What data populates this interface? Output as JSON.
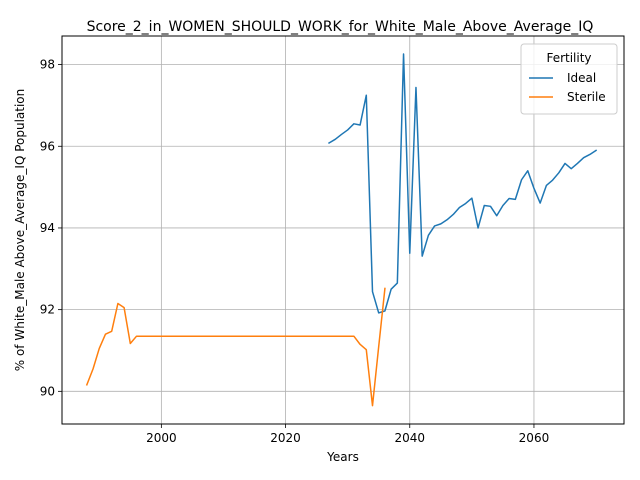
{
  "chart_data": {
    "type": "line",
    "title": "Score_2_in_WOMEN_SHOULD_WORK_for_White_Male_Above_Average_IQ",
    "xlabel": "Years",
    "ylabel": "% of White_Male Above_Average_IQ Population",
    "xlim": [
      1984,
      2074.5
    ],
    "ylim": [
      89.2,
      98.7
    ],
    "xticks": [
      2000,
      2020,
      2040,
      2060
    ],
    "yticks": [
      90,
      92,
      94,
      96,
      98
    ],
    "grid": true,
    "legend": {
      "title": "Fertility",
      "placement": "top-right"
    },
    "series": [
      {
        "name": "Ideal",
        "color": "#1f77b4",
        "x": [
          2027,
          2028,
          2029,
          2030,
          2031,
          2032,
          2033,
          2034,
          2035,
          2036,
          2037,
          2038,
          2039,
          2040,
          2041,
          2042,
          2043,
          2044,
          2045,
          2046,
          2047,
          2048,
          2049,
          2050,
          2051,
          2052,
          2053,
          2054,
          2055,
          2056,
          2057,
          2058,
          2059,
          2060,
          2061,
          2062,
          2063,
          2064,
          2065,
          2066,
          2067,
          2068,
          2069,
          2070
        ],
        "values": [
          96.08,
          96.17,
          96.29,
          96.4,
          96.55,
          96.52,
          97.25,
          92.44,
          91.92,
          91.97,
          92.5,
          92.65,
          98.26,
          93.38,
          97.44,
          93.31,
          93.82,
          94.05,
          94.1,
          94.2,
          94.33,
          94.5,
          94.6,
          94.73,
          94.0,
          94.55,
          94.53,
          94.3,
          94.55,
          94.72,
          94.7,
          95.18,
          95.4,
          94.97,
          94.61,
          95.04,
          95.17,
          95.35,
          95.58,
          95.45,
          95.58,
          95.72,
          95.8,
          95.9
        ]
      },
      {
        "name": "Sterile",
        "color": "#ff7f0e",
        "x": [
          1988,
          1989,
          1990,
          1991,
          1992,
          1993,
          1994,
          1995,
          1996,
          1997,
          1998,
          1999,
          2000,
          2005,
          2010,
          2015,
          2020,
          2025,
          2029,
          2030,
          2031,
          2032,
          2033,
          2034,
          2035,
          2036
        ],
        "values": [
          90.16,
          90.55,
          91.05,
          91.4,
          91.47,
          92.15,
          92.05,
          91.17,
          91.35,
          91.35,
          91.35,
          91.35,
          91.35,
          91.35,
          91.35,
          91.35,
          91.35,
          91.35,
          91.35,
          91.35,
          91.35,
          91.15,
          91.02,
          89.65,
          91.1,
          92.52
        ]
      }
    ]
  }
}
